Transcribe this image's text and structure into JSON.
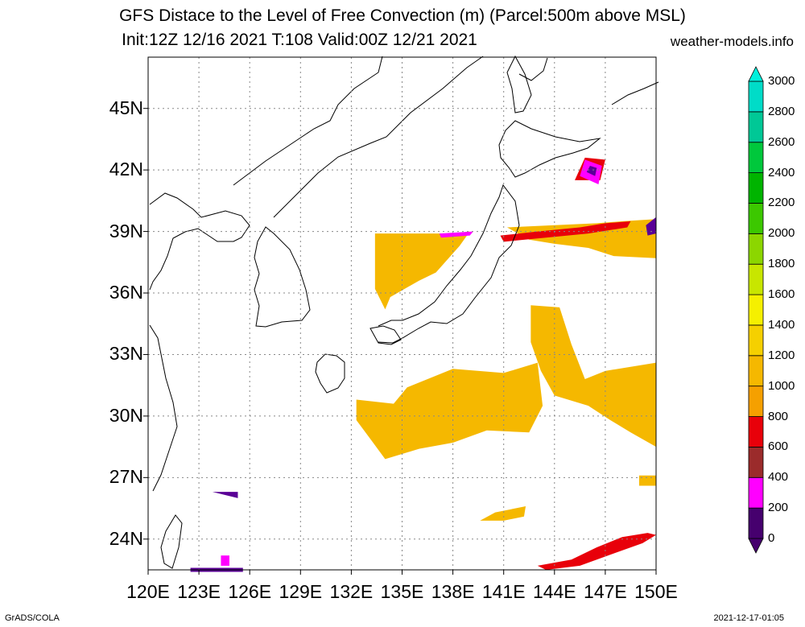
{
  "title": {
    "line1": "GFS Distace to the Level of Free Convection (m) (Parcel:500m above MSL)",
    "line2": "Init:12Z 12/16 2021 T:108 Valid:00Z 12/21 2021"
  },
  "source": "weather-models.info",
  "footer": {
    "left": "GrADS/COLA",
    "right": "2021-12-17-01:05"
  },
  "map": {
    "lon_range": [
      120,
      150
    ],
    "lat_range": [
      22.5,
      47.5
    ],
    "lon_ticks": [
      "120E",
      "123E",
      "126E",
      "129E",
      "132E",
      "135E",
      "138E",
      "141E",
      "144E",
      "147E",
      "150E"
    ],
    "lat_ticks": [
      "24N",
      "27N",
      "30N",
      "33N",
      "36N",
      "39N",
      "42N",
      "45N"
    ],
    "grid": true,
    "fill_regions": [
      {
        "name": "central-japan-sea",
        "color": "#f5b800",
        "points": [
          [
            133.4,
            38.9
          ],
          [
            138,
            38.9
          ],
          [
            139,
            39
          ],
          [
            138.4,
            38.3
          ],
          [
            137,
            37
          ],
          [
            136,
            36.6
          ],
          [
            134.3,
            35.8
          ],
          [
            134,
            35.2
          ],
          [
            133.4,
            36.2
          ]
        ]
      },
      {
        "name": "nw-pacific-east",
        "color": "#f5b800",
        "points": [
          [
            141.2,
            39.2
          ],
          [
            146.5,
            39.4
          ],
          [
            148,
            39.5
          ],
          [
            150,
            39.6
          ],
          [
            150,
            37.7
          ],
          [
            147.5,
            37.8
          ],
          [
            146,
            38.2
          ],
          [
            144,
            38.4
          ],
          [
            142.5,
            38.6
          ]
        ]
      },
      {
        "name": "south-of-japan",
        "color": "#f5b800",
        "points": [
          [
            132.3,
            30.8
          ],
          [
            134.5,
            30.6
          ],
          [
            135.3,
            31.4
          ],
          [
            138,
            32.3
          ],
          [
            141,
            32.1
          ],
          [
            143,
            32.6
          ],
          [
            143.3,
            30.5
          ],
          [
            142.5,
            29.2
          ],
          [
            140,
            29.3
          ],
          [
            138,
            28.7
          ],
          [
            136,
            28.4
          ],
          [
            134,
            27.9
          ],
          [
            133.2,
            28.8
          ],
          [
            132.3,
            29.8
          ]
        ]
      },
      {
        "name": "pacific-east-band",
        "color": "#f5b800",
        "points": [
          [
            142.6,
            35.4
          ],
          [
            144.3,
            35.3
          ],
          [
            145,
            33.5
          ],
          [
            145.8,
            31.8
          ],
          [
            147,
            32.2
          ],
          [
            148.5,
            32.4
          ],
          [
            150,
            32.6
          ],
          [
            150,
            28.5
          ],
          [
            148.5,
            29.2
          ],
          [
            147.3,
            29.8
          ],
          [
            146,
            30.5
          ],
          [
            144,
            31
          ],
          [
            143.2,
            32.2
          ],
          [
            142.6,
            33.6
          ]
        ]
      },
      {
        "name": "south-pacific-patch",
        "color": "#f5b800",
        "points": [
          [
            149,
            27.1
          ],
          [
            150,
            27.1
          ],
          [
            150,
            26.6
          ],
          [
            149,
            26.6
          ]
        ]
      },
      {
        "name": "south-streak",
        "color": "#f5b800",
        "points": [
          [
            139.6,
            24.9
          ],
          [
            140.5,
            25.3
          ],
          [
            142.3,
            25.6
          ],
          [
            142.2,
            25.1
          ],
          [
            141,
            24.9
          ]
        ]
      },
      {
        "name": "red-east-band",
        "color": "#e8000a",
        "points": [
          [
            140.8,
            38.8
          ],
          [
            143,
            39
          ],
          [
            145.5,
            39.2
          ],
          [
            147,
            39.4
          ],
          [
            148.5,
            39.5
          ],
          [
            148.3,
            39.2
          ],
          [
            146,
            38.9
          ],
          [
            143.5,
            38.7
          ],
          [
            141,
            38.5
          ]
        ]
      },
      {
        "name": "red-south-band",
        "color": "#e8000a",
        "points": [
          [
            143,
            22.7
          ],
          [
            145,
            23
          ],
          [
            146.5,
            23.6
          ],
          [
            148,
            24.1
          ],
          [
            149.5,
            24.3
          ],
          [
            150,
            24.2
          ],
          [
            149.2,
            23.8
          ],
          [
            147.5,
            23.3
          ],
          [
            145.5,
            22.7
          ],
          [
            143.5,
            22.5
          ]
        ]
      },
      {
        "name": "red-kuril",
        "color": "#e8000a",
        "points": [
          [
            145.2,
            41.5
          ],
          [
            146.7,
            41.5
          ],
          [
            147,
            42.5
          ],
          [
            145.8,
            42.6
          ]
        ]
      },
      {
        "name": "magenta-kuril",
        "color": "#ff00ff",
        "points": [
          [
            145.5,
            41.7
          ],
          [
            146.6,
            41.3
          ],
          [
            146.8,
            42.2
          ],
          [
            145.8,
            42.5
          ]
        ]
      },
      {
        "name": "purple-kuril",
        "color": "#5a0096",
        "points": [
          [
            145.9,
            41.9
          ],
          [
            146.4,
            41.7
          ],
          [
            146.5,
            42.1
          ],
          [
            146.1,
            42.2
          ]
        ]
      },
      {
        "name": "magenta-japan-sea",
        "color": "#ff00ff",
        "points": [
          [
            137.2,
            38.9
          ],
          [
            139.2,
            39
          ],
          [
            139,
            38.8
          ],
          [
            137.3,
            38.7
          ]
        ]
      },
      {
        "name": "purple-east",
        "color": "#5a0096",
        "points": [
          [
            149.4,
            39.3
          ],
          [
            150,
            39.7
          ],
          [
            150,
            38.9
          ],
          [
            149.5,
            38.8
          ]
        ]
      },
      {
        "name": "purple-strip",
        "color": "#5a0096",
        "points": [
          [
            123.8,
            26.3
          ],
          [
            125.3,
            26.3
          ],
          [
            125.3,
            26
          ]
        ]
      },
      {
        "name": "magenta-south",
        "color": "#ff00ff",
        "points": [
          [
            124.3,
            23.2
          ],
          [
            124.8,
            23.2
          ],
          [
            124.8,
            22.7
          ],
          [
            124.3,
            22.7
          ]
        ]
      },
      {
        "name": "purple-south",
        "color": "#5a0096",
        "points": [
          [
            122.5,
            22.6
          ],
          [
            125.6,
            22.6
          ],
          [
            125.6,
            22.4
          ],
          [
            122.5,
            22.4
          ]
        ]
      }
    ]
  },
  "colorbar": {
    "labels": [
      "0",
      "200",
      "400",
      "600",
      "800",
      "1000",
      "1200",
      "1400",
      "1600",
      "1800",
      "2000",
      "2200",
      "2400",
      "2600",
      "2800",
      "3000"
    ],
    "colors": [
      "#46006e",
      "#ff00ff",
      "#9b2b2b",
      "#e8000a",
      "#f5a000",
      "#f5b800",
      "#f5d000",
      "#f5f000",
      "#c8e600",
      "#8cd600",
      "#3cc800",
      "#00b400",
      "#00c83c",
      "#00c896",
      "#00dcc8",
      "#00f0dc"
    ],
    "over_color": "#00f0dc",
    "under_color": "#46006e"
  }
}
